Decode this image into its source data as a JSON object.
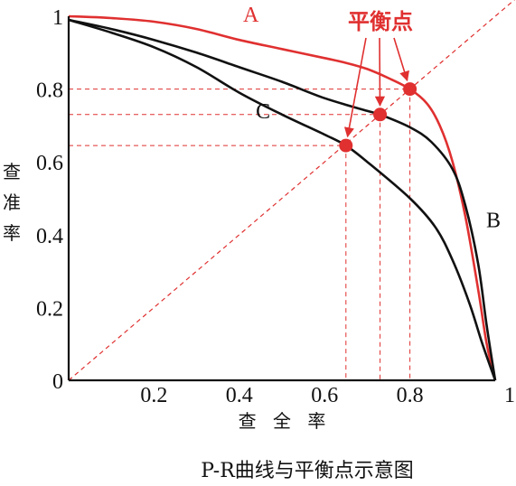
{
  "chart_data": {
    "type": "line",
    "xlabel": "查 全 率",
    "ylabel_chars": [
      "查",
      "准",
      "率"
    ],
    "caption": "P-R曲线与平衡点示意图",
    "xlim": [
      0,
      1
    ],
    "ylim": [
      0,
      1
    ],
    "x_ticks": [
      "0.2",
      "0.4",
      "0.6",
      "0.8",
      "1"
    ],
    "y_ticks": [
      "0",
      "0.2",
      "0.4",
      "0.6",
      "0.8",
      "1"
    ],
    "diagonal": {
      "style": "dashed",
      "color": "#e03030",
      "from": [
        0,
        0
      ],
      "to": [
        1,
        1
      ]
    },
    "series": [
      {
        "name": "A",
        "color": "#e03030",
        "points": [
          [
            0,
            1.0
          ],
          [
            0.1,
            0.995
          ],
          [
            0.2,
            0.985
          ],
          [
            0.3,
            0.965
          ],
          [
            0.4,
            0.935
          ],
          [
            0.5,
            0.91
          ],
          [
            0.6,
            0.885
          ],
          [
            0.65,
            0.872
          ],
          [
            0.7,
            0.855
          ],
          [
            0.75,
            0.83
          ],
          [
            0.8,
            0.8
          ],
          [
            0.84,
            0.76
          ],
          [
            0.87,
            0.7
          ],
          [
            0.9,
            0.6
          ],
          [
            0.93,
            0.45
          ],
          [
            0.96,
            0.25
          ],
          [
            0.98,
            0.1
          ],
          [
            1.0,
            0
          ]
        ]
      },
      {
        "name": "B",
        "color": "#111111",
        "points": [
          [
            0,
            0.99
          ],
          [
            0.1,
            0.965
          ],
          [
            0.2,
            0.935
          ],
          [
            0.3,
            0.9
          ],
          [
            0.4,
            0.86
          ],
          [
            0.5,
            0.82
          ],
          [
            0.6,
            0.775
          ],
          [
            0.7,
            0.74
          ],
          [
            0.73,
            0.73
          ],
          [
            0.8,
            0.695
          ],
          [
            0.85,
            0.655
          ],
          [
            0.9,
            0.58
          ],
          [
            0.93,
            0.48
          ],
          [
            0.96,
            0.32
          ],
          [
            0.98,
            0.15
          ],
          [
            1.0,
            0
          ]
        ]
      },
      {
        "name": "C",
        "color": "#111111",
        "points": [
          [
            0,
            0.99
          ],
          [
            0.1,
            0.955
          ],
          [
            0.2,
            0.915
          ],
          [
            0.3,
            0.86
          ],
          [
            0.4,
            0.79
          ],
          [
            0.5,
            0.73
          ],
          [
            0.6,
            0.675
          ],
          [
            0.65,
            0.645
          ],
          [
            0.7,
            0.6
          ],
          [
            0.8,
            0.5
          ],
          [
            0.86,
            0.42
          ],
          [
            0.9,
            0.33
          ],
          [
            0.94,
            0.21
          ],
          [
            0.97,
            0.1
          ],
          [
            1.0,
            0
          ]
        ]
      }
    ],
    "curve_labels": [
      {
        "text": "A",
        "x": 0.43,
        "y": 1.005,
        "color": "#e03030"
      },
      {
        "text": "B",
        "x": 1.0,
        "y": 0.44,
        "color": "#111111"
      },
      {
        "text": "C",
        "x": 0.46,
        "y": 0.74,
        "color": "#111111"
      }
    ],
    "break_even_points": [
      {
        "series": "A",
        "x": 0.8,
        "y": 0.8
      },
      {
        "series": "B",
        "x": 0.73,
        "y": 0.73
      },
      {
        "series": "C",
        "x": 0.65,
        "y": 0.645
      }
    ],
    "annotation": {
      "text": "平衡点",
      "color": "#e03030"
    }
  }
}
